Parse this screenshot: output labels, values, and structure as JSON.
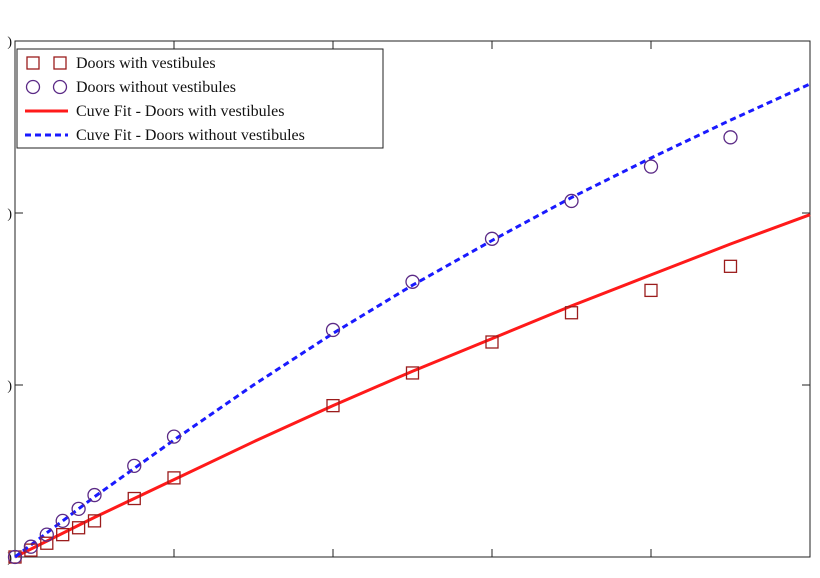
{
  "chart_data": {
    "type": "scatter",
    "title": "",
    "xlabel": "",
    "ylabel": "",
    "xlim": [
      0,
      50
    ],
    "ylim": [
      0,
      30
    ],
    "grid": false,
    "legend_position": "top-left",
    "x_ticks": [
      0,
      10,
      20,
      30,
      40,
      50
    ],
    "y_ticks": [
      0,
      10,
      20,
      30
    ],
    "y_tick_labels": [
      ")",
      ")",
      ")",
      ")"
    ],
    "series": [
      {
        "name": "Doors with vestibules",
        "kind": "markers",
        "marker": "square",
        "color": "#9b1c1c",
        "x": [
          0,
          1,
          2,
          3,
          4,
          5,
          7.5,
          10,
          20,
          25,
          30,
          35,
          40,
          45
        ],
        "y": [
          0,
          0.4,
          0.8,
          1.3,
          1.7,
          2.1,
          3.4,
          4.6,
          8.8,
          10.7,
          12.5,
          14.2,
          15.5,
          16.9
        ]
      },
      {
        "name": "Doors without vestibules",
        "kind": "markers",
        "marker": "circle",
        "color": "#5b2a86",
        "x": [
          0,
          1,
          2,
          3,
          4,
          5,
          7.5,
          10,
          20,
          25,
          30,
          35,
          40,
          45
        ],
        "y": [
          0,
          0.6,
          1.3,
          2.1,
          2.8,
          3.6,
          5.3,
          7.0,
          13.2,
          16.0,
          18.5,
          20.7,
          22.7,
          24.4
        ]
      },
      {
        "name": "Cuve Fit - Doors with vestibules",
        "kind": "line",
        "style": "solid",
        "color": "#ff1a1a",
        "x": [
          0,
          5,
          10,
          15,
          20,
          25,
          30,
          35,
          40,
          45,
          50
        ],
        "y": [
          0,
          2.3,
          4.5,
          6.7,
          8.8,
          10.8,
          12.7,
          14.6,
          16.4,
          18.2,
          19.9
        ]
      },
      {
        "name": "Cuve Fit - Doors without vestibules",
        "kind": "line",
        "style": "dashed",
        "color": "#1a1aff",
        "x": [
          0,
          5,
          10,
          15,
          20,
          25,
          30,
          35,
          40,
          45,
          50
        ],
        "y": [
          0,
          3.5,
          6.8,
          10.0,
          13.0,
          15.8,
          18.4,
          20.9,
          23.2,
          25.4,
          27.5
        ]
      }
    ]
  }
}
